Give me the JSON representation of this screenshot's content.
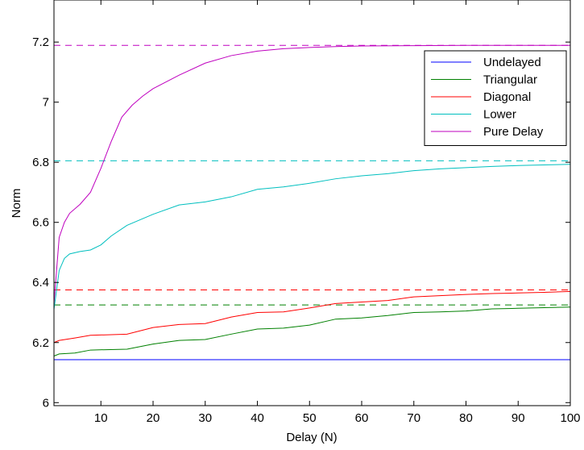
{
  "chart_data": {
    "type": "line",
    "title": "",
    "xlabel": "Delay (N)",
    "ylabel": "Norm",
    "xlim": [
      1,
      100
    ],
    "ylim": [
      5.99,
      7.34
    ],
    "x_ticks": [
      10,
      20,
      30,
      40,
      50,
      60,
      70,
      80,
      90,
      100
    ],
    "y_ticks": [
      6,
      6.2,
      6.4,
      6.6,
      6.8,
      7,
      7.2
    ],
    "x_tick_labels": [
      "10",
      "20",
      "30",
      "40",
      "50",
      "60",
      "70",
      "80",
      "90",
      "100"
    ],
    "y_tick_labels": [
      "6",
      "6.2",
      "6.4",
      "6.6",
      "6.8",
      "7",
      "7.2"
    ],
    "grid": false,
    "legend_position": "top-right",
    "series": [
      {
        "name": "Undelayed",
        "color": "#0000ff",
        "points": [
          [
            1,
            6.143
          ],
          [
            100,
            6.143
          ]
        ],
        "asymptote": null
      },
      {
        "name": "Triangular",
        "color": "#008000",
        "points": [
          [
            1,
            6.155
          ],
          [
            2,
            6.162
          ],
          [
            5,
            6.165
          ],
          [
            8,
            6.175
          ],
          [
            15,
            6.178
          ],
          [
            20,
            6.195
          ],
          [
            25,
            6.207
          ],
          [
            30,
            6.21
          ],
          [
            35,
            6.228
          ],
          [
            40,
            6.245
          ],
          [
            45,
            6.248
          ],
          [
            50,
            6.258
          ],
          [
            55,
            6.278
          ],
          [
            60,
            6.282
          ],
          [
            65,
            6.29
          ],
          [
            70,
            6.3
          ],
          [
            75,
            6.302
          ],
          [
            80,
            6.305
          ],
          [
            85,
            6.312
          ],
          [
            90,
            6.314
          ],
          [
            95,
            6.316
          ],
          [
            100,
            6.318
          ]
        ],
        "asymptote": 6.325
      },
      {
        "name": "Diagonal",
        "color": "#ff0000",
        "points": [
          [
            1,
            6.2
          ],
          [
            2,
            6.207
          ],
          [
            5,
            6.215
          ],
          [
            8,
            6.224
          ],
          [
            15,
            6.228
          ],
          [
            20,
            6.25
          ],
          [
            25,
            6.26
          ],
          [
            30,
            6.263
          ],
          [
            35,
            6.285
          ],
          [
            40,
            6.3
          ],
          [
            45,
            6.302
          ],
          [
            50,
            6.315
          ],
          [
            55,
            6.33
          ],
          [
            60,
            6.335
          ],
          [
            65,
            6.34
          ],
          [
            70,
            6.352
          ],
          [
            75,
            6.356
          ],
          [
            80,
            6.36
          ],
          [
            85,
            6.363
          ],
          [
            90,
            6.365
          ],
          [
            95,
            6.367
          ],
          [
            100,
            6.37
          ]
        ],
        "asymptote": 6.375
      },
      {
        "name": "Lower",
        "color": "#00bfbf",
        "points": [
          [
            1,
            6.31
          ],
          [
            2,
            6.44
          ],
          [
            3,
            6.48
          ],
          [
            4,
            6.495
          ],
          [
            6,
            6.503
          ],
          [
            8,
            6.508
          ],
          [
            10,
            6.525
          ],
          [
            12,
            6.555
          ],
          [
            15,
            6.59
          ],
          [
            20,
            6.627
          ],
          [
            25,
            6.658
          ],
          [
            30,
            6.668
          ],
          [
            35,
            6.685
          ],
          [
            40,
            6.71
          ],
          [
            45,
            6.718
          ],
          [
            50,
            6.73
          ],
          [
            55,
            6.745
          ],
          [
            60,
            6.755
          ],
          [
            65,
            6.762
          ],
          [
            70,
            6.772
          ],
          [
            75,
            6.778
          ],
          [
            80,
            6.782
          ],
          [
            85,
            6.786
          ],
          [
            90,
            6.789
          ],
          [
            95,
            6.791
          ],
          [
            100,
            6.793
          ]
        ],
        "asymptote": 6.805
      },
      {
        "name": "Pure Delay",
        "color": "#bf00bf",
        "points": [
          [
            1,
            6.33
          ],
          [
            2,
            6.55
          ],
          [
            3,
            6.6
          ],
          [
            4,
            6.63
          ],
          [
            6,
            6.66
          ],
          [
            8,
            6.7
          ],
          [
            10,
            6.78
          ],
          [
            12,
            6.87
          ],
          [
            14,
            6.95
          ],
          [
            16,
            6.99
          ],
          [
            18,
            7.02
          ],
          [
            20,
            7.045
          ],
          [
            25,
            7.09
          ],
          [
            30,
            7.13
          ],
          [
            35,
            7.155
          ],
          [
            40,
            7.17
          ],
          [
            45,
            7.178
          ],
          [
            50,
            7.182
          ],
          [
            55,
            7.185
          ],
          [
            60,
            7.187
          ],
          [
            70,
            7.188
          ],
          [
            80,
            7.189
          ],
          [
            100,
            7.189
          ]
        ],
        "asymptote": 7.189
      }
    ]
  }
}
